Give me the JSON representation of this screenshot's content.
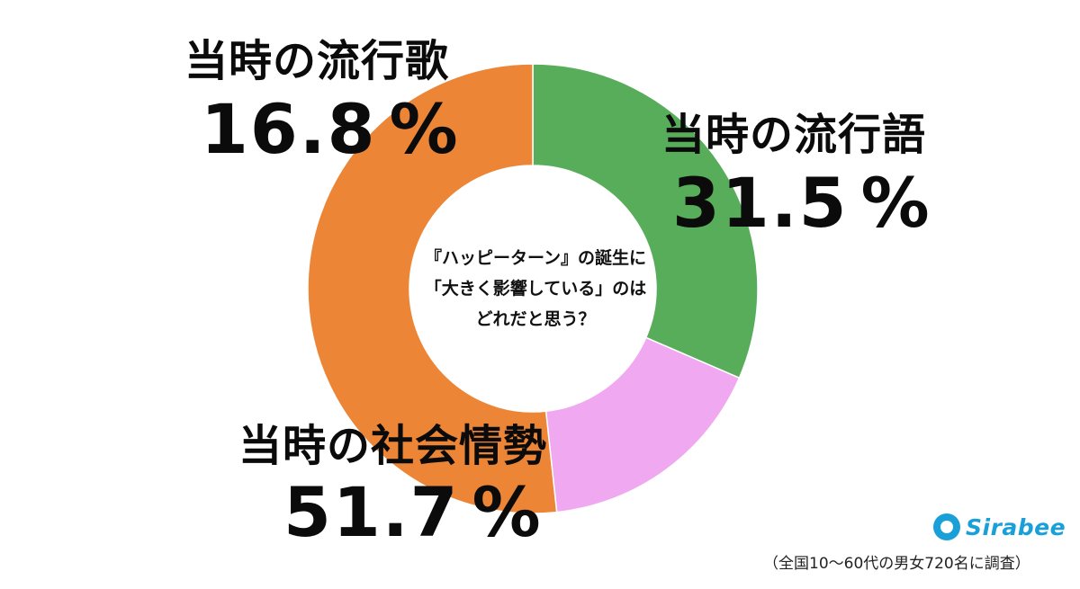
{
  "chart_data": {
    "type": "pie",
    "style": "donut",
    "labels": [
      "当時の流行語",
      "当時の流行歌",
      "当時の社会情勢"
    ],
    "values": [
      31.5,
      16.8,
      51.7
    ],
    "value_labels": [
      "31.5",
      "16.8",
      "51.7"
    ],
    "unit": "%",
    "colors": [
      "#58ad5a",
      "#f0a8f0",
      "#ec8535"
    ],
    "center_text": [
      "『ハッピーターン』の誕生に",
      "「大きく影響している」のは",
      "どれだと思う？"
    ],
    "legend": "none"
  },
  "branding": {
    "logo_text": "Sirabee",
    "color": "#1aa0d8"
  },
  "footnote": "（全国10〜60代の男女720名に調査）"
}
